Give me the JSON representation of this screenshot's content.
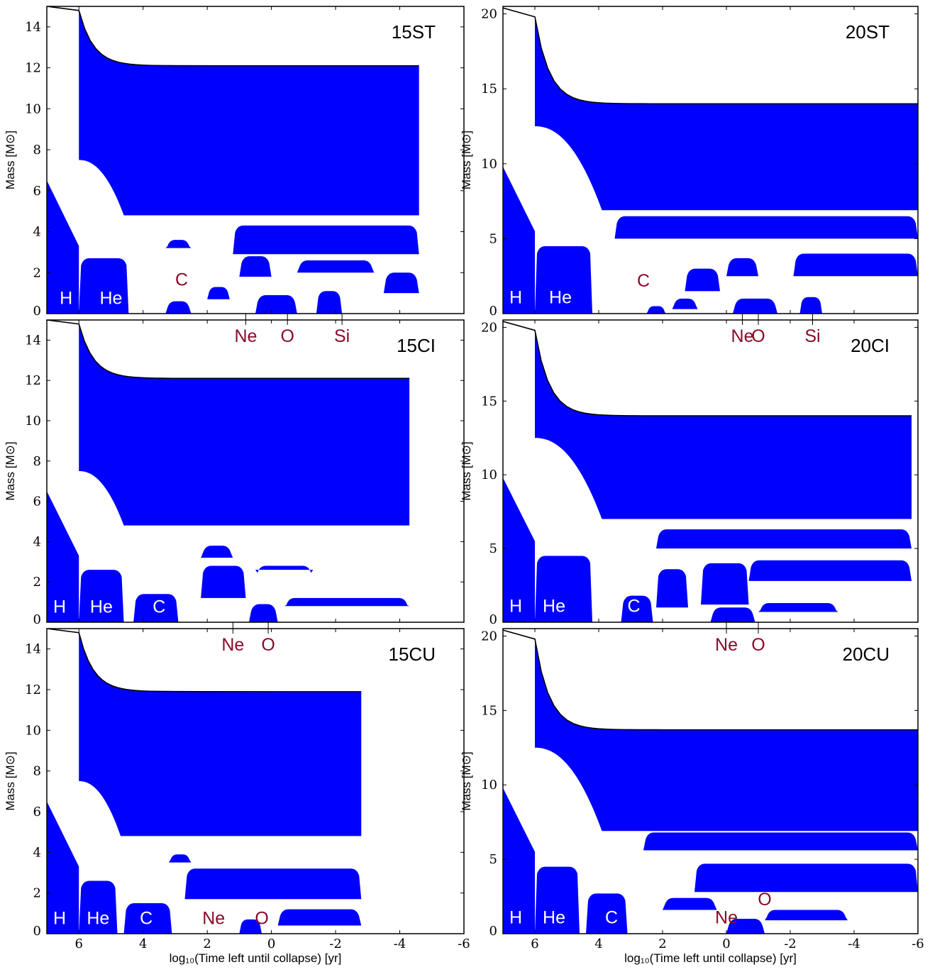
{
  "colors": {
    "convective": "#0000ff",
    "burning_label": "#8b0a28",
    "region_label": "#ffffff",
    "axis": "#000000"
  },
  "chart_data": [
    {
      "type": "area",
      "title": "15ST",
      "xlim": [
        7,
        -6
      ],
      "ylim": [
        0,
        15
      ],
      "xticks": [
        "6",
        "4",
        "2",
        "0",
        "-2",
        "-4",
        "-6"
      ],
      "show_xticks": false,
      "yticks": [
        "0",
        "2",
        "4",
        "6",
        "8",
        "10",
        "12",
        "14"
      ],
      "ylabel": "Mass [M⊙]",
      "xlabel": "",
      "surface_mass": {
        "start": 15.0,
        "at_he_ignition": 14.8,
        "final": 12.1
      },
      "end_x": -4.6,
      "regions": [
        {
          "x0": 7.0,
          "x1": 6.0,
          "y0": 0,
          "y1": 6.5,
          "y1_end": 3.3
        },
        {
          "x0": 6.0,
          "x1": 4.6,
          "y0": 4.8,
          "y1": 12.1,
          "y1_start": 7.5,
          "x_end": -4.6
        },
        {
          "x0": 6.0,
          "x1": 4.45,
          "y0": 0,
          "y1": 2.7
        },
        {
          "x0": 3.3,
          "x1": 2.5,
          "y0": 0,
          "y1": 0.6
        },
        {
          "x0": 2.0,
          "x1": 1.3,
          "y0": 0.7,
          "y1": 1.3
        },
        {
          "x0": 1.0,
          "x1": 0.0,
          "y0": 1.8,
          "y1": 2.8
        },
        {
          "x0": 0.5,
          "x1": -0.8,
          "y0": 0,
          "y1": 0.9
        },
        {
          "x0": -1.4,
          "x1": -2.2,
          "y0": 0,
          "y1": 1.1
        },
        {
          "x0": 3.3,
          "x1": 2.5,
          "y0": 3.2,
          "y1": 3.6
        },
        {
          "x0": 1.2,
          "x1": -4.6,
          "y0": 2.9,
          "y1": 4.3
        },
        {
          "x0": -0.8,
          "x1": -3.2,
          "y0": 2.0,
          "y1": 2.6
        },
        {
          "x0": -3.5,
          "x1": -4.6,
          "y0": 1.0,
          "y1": 2.0
        }
      ],
      "labels": [
        {
          "text": "H",
          "x": 6.4,
          "y": 0.4,
          "color": "region"
        },
        {
          "text": "He",
          "x": 5.0,
          "y": 0.4,
          "color": "region"
        },
        {
          "text": "C",
          "x": 2.8,
          "y": 1.3,
          "color": "burn"
        }
      ],
      "markers": [
        {
          "text": "Ne",
          "x": 0.8
        },
        {
          "text": "O",
          "x": -0.5
        },
        {
          "text": "Si",
          "x": -2.2
        }
      ]
    },
    {
      "type": "area",
      "title": "20ST",
      "xlim": [
        7,
        -6
      ],
      "ylim": [
        0,
        20.5
      ],
      "xticks": [
        "6",
        "4",
        "2",
        "0",
        "-2",
        "-4",
        "-6"
      ],
      "show_xticks": false,
      "yticks": [
        "0",
        "5",
        "10",
        "15",
        "20"
      ],
      "ylabel": "Mass [M⊙]",
      "xlabel": "",
      "surface_mass": {
        "start": 20.4,
        "at_he_ignition": 19.8,
        "final": 14.0
      },
      "end_x": -6.0,
      "regions": [
        {
          "x0": 7.0,
          "x1": 6.0,
          "y0": 0,
          "y1": 9.8,
          "y1_end": 5.5
        },
        {
          "x0": 6.0,
          "x1": 3.9,
          "y0": 6.9,
          "y1": 14.0,
          "y1_start": 12.5,
          "x_end": -6.0
        },
        {
          "x0": 6.0,
          "x1": 4.2,
          "y0": 0,
          "y1": 4.5
        },
        {
          "x0": 2.5,
          "x1": 1.9,
          "y0": 0,
          "y1": 0.5
        },
        {
          "x0": 1.7,
          "x1": 0.9,
          "y0": 0.3,
          "y1": 1.0
        },
        {
          "x0": 1.3,
          "x1": 0.2,
          "y0": 1.5,
          "y1": 3.0
        },
        {
          "x0": 0.0,
          "x1": -1.0,
          "y0": 2.5,
          "y1": 3.7
        },
        {
          "x0": -0.2,
          "x1": -1.6,
          "y0": 0,
          "y1": 1.0
        },
        {
          "x0": -2.3,
          "x1": -3.0,
          "y0": 0,
          "y1": 1.1
        },
        {
          "x0": 3.5,
          "x1": -6.0,
          "y0": 5.0,
          "y1": 6.5
        },
        {
          "x0": -2.1,
          "x1": -6.0,
          "y0": 2.5,
          "y1": 4.0
        },
        {
          "x0": -4.2,
          "x1": -6.0,
          "y0": 12.3,
          "y1": 14.0
        }
      ],
      "labels": [
        {
          "text": "H",
          "x": 6.6,
          "y": 0.6,
          "color": "region"
        },
        {
          "text": "He",
          "x": 5.2,
          "y": 0.6,
          "color": "region"
        },
        {
          "text": "C",
          "x": 2.6,
          "y": 1.7,
          "color": "burn"
        }
      ],
      "markers": [
        {
          "text": "Ne",
          "x": -0.5
        },
        {
          "text": "O",
          "x": -1.0
        },
        {
          "text": "Si",
          "x": -2.7
        }
      ]
    },
    {
      "type": "area",
      "title": "15CI",
      "xlim": [
        7,
        -6
      ],
      "ylim": [
        0,
        15
      ],
      "xticks": [
        "6",
        "4",
        "2",
        "0",
        "-2",
        "-4",
        "-6"
      ],
      "show_xticks": false,
      "yticks": [
        "0",
        "2",
        "4",
        "6",
        "8",
        "10",
        "12",
        "14"
      ],
      "ylabel": "Mass [M⊙]",
      "xlabel": "",
      "surface_mass": {
        "start": 15.0,
        "at_he_ignition": 14.8,
        "final": 12.1
      },
      "end_x": -4.3,
      "regions": [
        {
          "x0": 7.0,
          "x1": 6.0,
          "y0": 0,
          "y1": 6.5,
          "y1_end": 3.3
        },
        {
          "x0": 6.0,
          "x1": 4.6,
          "y0": 4.8,
          "y1": 12.1,
          "y1_start": 7.5,
          "x_end": -4.3
        },
        {
          "x0": 6.0,
          "x1": 4.6,
          "y0": 0,
          "y1": 2.6
        },
        {
          "x0": 4.3,
          "x1": 2.9,
          "y0": 0,
          "y1": 1.4
        },
        {
          "x0": 2.2,
          "x1": 1.2,
          "y0": 3.2,
          "y1": 3.8
        },
        {
          "x0": 2.2,
          "x1": 0.8,
          "y0": 1.2,
          "y1": 2.8
        },
        {
          "x0": 0.7,
          "x1": -0.2,
          "y0": 0,
          "y1": 0.9
        },
        {
          "x0": 0.5,
          "x1": -1.3,
          "y0": 2.6,
          "y1": 2.8
        },
        {
          "x0": -0.4,
          "x1": -4.3,
          "y0": 0.8,
          "y1": 1.2
        }
      ],
      "labels": [
        {
          "text": "H",
          "x": 6.6,
          "y": 0.4,
          "color": "region"
        },
        {
          "text": "He",
          "x": 5.3,
          "y": 0.4,
          "color": "region"
        },
        {
          "text": "C",
          "x": 3.5,
          "y": 0.4,
          "color": "region"
        }
      ],
      "markers": [
        {
          "text": "Ne",
          "x": 1.2
        },
        {
          "text": "O",
          "x": 0.1
        }
      ]
    },
    {
      "type": "area",
      "title": "20CI",
      "xlim": [
        7,
        -6
      ],
      "ylim": [
        0,
        20.5
      ],
      "xticks": [
        "6",
        "4",
        "2",
        "0",
        "-2",
        "-4",
        "-6"
      ],
      "show_xticks": false,
      "yticks": [
        "0",
        "5",
        "10",
        "15",
        "20"
      ],
      "ylabel": "Mass [M⊙]",
      "xlabel": "",
      "surface_mass": {
        "start": 20.4,
        "at_he_ignition": 19.8,
        "final": 14.0
      },
      "end_x": -5.8,
      "regions": [
        {
          "x0": 7.0,
          "x1": 6.0,
          "y0": 0,
          "y1": 9.8,
          "y1_end": 5.5
        },
        {
          "x0": 6.0,
          "x1": 3.9,
          "y0": 7.0,
          "y1": 14.0,
          "y1_start": 12.5,
          "x_end": -5.8
        },
        {
          "x0": 6.0,
          "x1": 4.2,
          "y0": 0,
          "y1": 4.5
        },
        {
          "x0": 3.3,
          "x1": 2.3,
          "y0": 0,
          "y1": 1.8
        },
        {
          "x0": 2.2,
          "x1": 1.2,
          "y0": 1.0,
          "y1": 3.6
        },
        {
          "x0": 0.8,
          "x1": -0.7,
          "y0": 1.2,
          "y1": 4.0
        },
        {
          "x0": 0.5,
          "x1": -0.9,
          "y0": 0,
          "y1": 1.0
        },
        {
          "x0": 2.2,
          "x1": -5.8,
          "y0": 5.0,
          "y1": 6.3
        },
        {
          "x0": -0.7,
          "x1": -5.8,
          "y0": 2.8,
          "y1": 4.2
        },
        {
          "x0": -1.0,
          "x1": -3.5,
          "y0": 0.7,
          "y1": 1.3
        }
      ],
      "labels": [
        {
          "text": "H",
          "x": 6.6,
          "y": 0.6,
          "color": "region"
        },
        {
          "text": "He",
          "x": 5.4,
          "y": 0.6,
          "color": "region"
        },
        {
          "text": "C",
          "x": 2.9,
          "y": 0.6,
          "color": "region"
        }
      ],
      "markers": [
        {
          "text": "Ne",
          "x": 0.0
        },
        {
          "text": "O",
          "x": -1.0
        }
      ]
    },
    {
      "type": "area",
      "title": "15CU",
      "xlim": [
        7,
        -6
      ],
      "ylim": [
        0,
        15
      ],
      "xticks": [
        "6",
        "4",
        "2",
        "0",
        "-2",
        "-4",
        "-6"
      ],
      "show_xticks": true,
      "yticks": [
        "0",
        "2",
        "4",
        "6",
        "8",
        "10",
        "12",
        "14"
      ],
      "ylabel": "Mass [M⊙]",
      "xlabel": "log₁₀(Time left until collapse) [yr]",
      "surface_mass": {
        "start": 15.0,
        "at_he_ignition": 14.8,
        "final": 11.9
      },
      "end_x": -2.8,
      "regions": [
        {
          "x0": 7.0,
          "x1": 6.0,
          "y0": 0,
          "y1": 6.5,
          "y1_end": 3.3
        },
        {
          "x0": 6.0,
          "x1": 4.7,
          "y0": 4.8,
          "y1": 11.9,
          "y1_start": 7.5,
          "x_end": -2.8
        },
        {
          "x0": 6.0,
          "x1": 4.8,
          "y0": 0,
          "y1": 2.6
        },
        {
          "x0": 4.6,
          "x1": 3.1,
          "y0": 0,
          "y1": 1.5
        },
        {
          "x0": 3.2,
          "x1": 2.5,
          "y0": 3.5,
          "y1": 3.9
        },
        {
          "x0": 2.7,
          "x1": -2.8,
          "y0": 1.7,
          "y1": 3.2
        },
        {
          "x0": 1.0,
          "x1": 0.3,
          "y0": 0,
          "y1": 0.7
        },
        {
          "x0": -0.2,
          "x1": -2.8,
          "y0": 0.4,
          "y1": 1.2
        }
      ],
      "labels": [
        {
          "text": "H",
          "x": 6.6,
          "y": 0.4,
          "color": "region"
        },
        {
          "text": "He",
          "x": 5.4,
          "y": 0.4,
          "color": "region"
        },
        {
          "text": "C",
          "x": 3.9,
          "y": 0.4,
          "color": "region"
        },
        {
          "text": "Ne",
          "x": 1.8,
          "y": 0.4,
          "color": "burn"
        },
        {
          "text": "O",
          "x": 0.3,
          "y": 0.4,
          "color": "burn"
        }
      ],
      "markers": []
    },
    {
      "type": "area",
      "title": "20CU",
      "xlim": [
        7,
        -6
      ],
      "ylim": [
        0,
        20.5
      ],
      "xticks": [
        "6",
        "4",
        "2",
        "0",
        "-2",
        "-4",
        "-6"
      ],
      "show_xticks": true,
      "yticks": [
        "0",
        "5",
        "10",
        "15",
        "20"
      ],
      "ylabel": "Mass [M⊙]",
      "xlabel": "log₁₀(Time left until collapse) [yr]",
      "surface_mass": {
        "start": 20.4,
        "at_he_ignition": 19.8,
        "final": 13.7
      },
      "end_x": -6.0,
      "regions": [
        {
          "x0": 7.0,
          "x1": 6.0,
          "y0": 0,
          "y1": 9.8,
          "y1_end": 5.5
        },
        {
          "x0": 6.0,
          "x1": 3.9,
          "y0": 6.9,
          "y1": 13.7,
          "y1_start": 12.5,
          "x_end": -6.0
        },
        {
          "x0": 6.0,
          "x1": 4.6,
          "y0": 0,
          "y1": 4.5
        },
        {
          "x0": 4.4,
          "x1": 3.1,
          "y0": 0,
          "y1": 2.7
        },
        {
          "x0": 2.6,
          "x1": -6.0,
          "y0": 5.6,
          "y1": 6.8
        },
        {
          "x0": 1.0,
          "x1": -6.0,
          "y0": 2.8,
          "y1": 4.7
        },
        {
          "x0": 2.0,
          "x1": 0.3,
          "y0": 1.6,
          "y1": 2.4
        },
        {
          "x0": 0.0,
          "x1": -1.2,
          "y0": 0,
          "y1": 1.0
        },
        {
          "x0": -1.2,
          "x1": -3.8,
          "y0": 0.9,
          "y1": 1.6
        }
      ],
      "labels": [
        {
          "text": "H",
          "x": 6.6,
          "y": 0.6,
          "color": "region"
        },
        {
          "text": "He",
          "x": 5.4,
          "y": 0.6,
          "color": "region"
        },
        {
          "text": "C",
          "x": 3.6,
          "y": 0.6,
          "color": "region"
        },
        {
          "text": "Ne",
          "x": 0.0,
          "y": 0.6,
          "color": "burn"
        },
        {
          "text": "O",
          "x": -1.2,
          "y": 1.8,
          "color": "burn"
        }
      ],
      "markers": []
    }
  ]
}
